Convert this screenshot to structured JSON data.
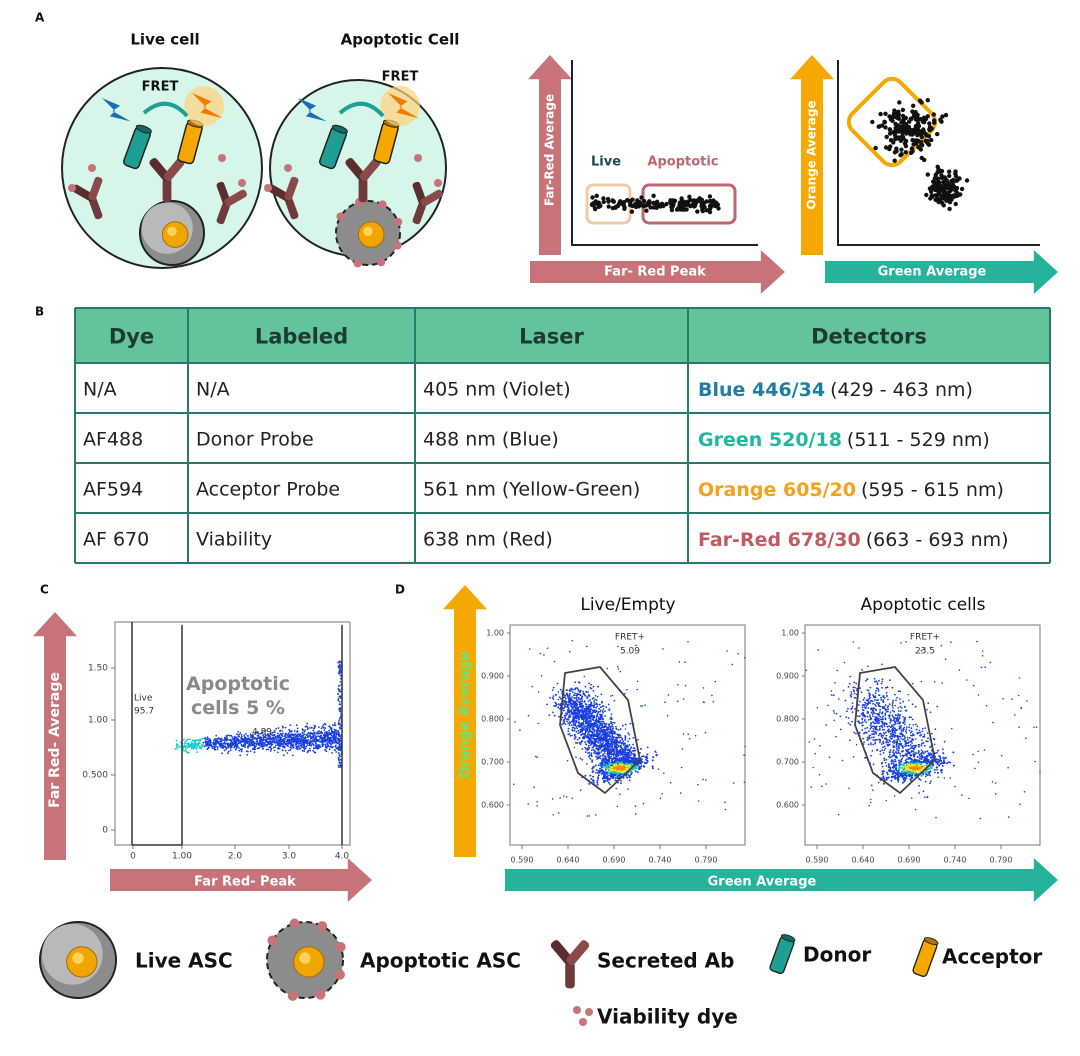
{
  "panel_a": {
    "label": "A",
    "live_title": "Live cell",
    "apoptotic_title": "Apoptotic Cell",
    "fret_live": "FRET",
    "fret_apoptotic": "FRET",
    "plot_peak": {
      "y_label": "Far-Red Average",
      "x_label": "Far- Red Peak",
      "live": "Live",
      "apoptotic": "Apoptotic"
    },
    "plot_green": {
      "y_label": "Orange Average",
      "x_label": "Green Average"
    }
  },
  "panel_b": {
    "label": "B",
    "header": [
      "Dye",
      "Labeled",
      "Laser",
      "Detectors"
    ],
    "rows": [
      {
        "dye": "N/A",
        "labeled": "N/A",
        "laser": "405 nm (Violet)",
        "detector": "Blue 446/34",
        "range": "(429 - 463 nm)"
      },
      {
        "dye": "AF488",
        "labeled": "Donor Probe",
        "laser": "488 nm (Blue)",
        "detector": "Green 520/18",
        "range": "(511 - 529 nm)"
      },
      {
        "dye": "AF594",
        "labeled": "Acceptor Probe",
        "laser": "561 nm (Yellow-Green)",
        "detector": "Orange 605/20",
        "range": "(595 - 615 nm)"
      },
      {
        "dye": "AF 670",
        "labeled": "Viability",
        "laser": "638 nm (Red)",
        "detector": "Far-Red 678/30",
        "range": "(663 - 693 nm)"
      }
    ]
  },
  "panel_c": {
    "label": "C",
    "y_label": "Far Red- Average",
    "x_label": "Far Red- Peak",
    "yticks": [
      "1.50",
      "1.00",
      "0.500",
      "0"
    ],
    "xticks": [
      "0",
      "1.00",
      "2.0",
      "3.0",
      "4.0"
    ],
    "live_gate": "Live",
    "live_value": "95.7",
    "apoptotic_value": "4.89",
    "annotation": "Apoptotic cells 5 %"
  },
  "panel_d": {
    "label": "D",
    "y_label": "Orange Average",
    "x_label": "Green Average",
    "plots": [
      {
        "title": "Live/Empty",
        "gate": "FRET+",
        "value": "5.09",
        "yticks": [
          "1.00",
          "0.900",
          "0.800",
          "0.700",
          "0.600"
        ],
        "xticks": [
          "0.590",
          "0.640",
          "0.690",
          "0.740",
          "0.790"
        ]
      },
      {
        "title": "Apoptotic cells",
        "gate": "FRET+",
        "value": "23.5",
        "yticks": [
          "1.00",
          "0.900",
          "0.800",
          "0.700",
          "0.600"
        ],
        "xticks": [
          "0.590",
          "0.640",
          "0.690",
          "0.740",
          "0.790"
        ]
      }
    ]
  },
  "legend": {
    "live_asc": "Live ASC",
    "apoptotic_asc": "Apoptotic ASC",
    "secreted_ab": "Secreted Ab",
    "donor": "Donor",
    "acceptor": "Acceptor",
    "viability_dye": "Viability dye"
  }
}
